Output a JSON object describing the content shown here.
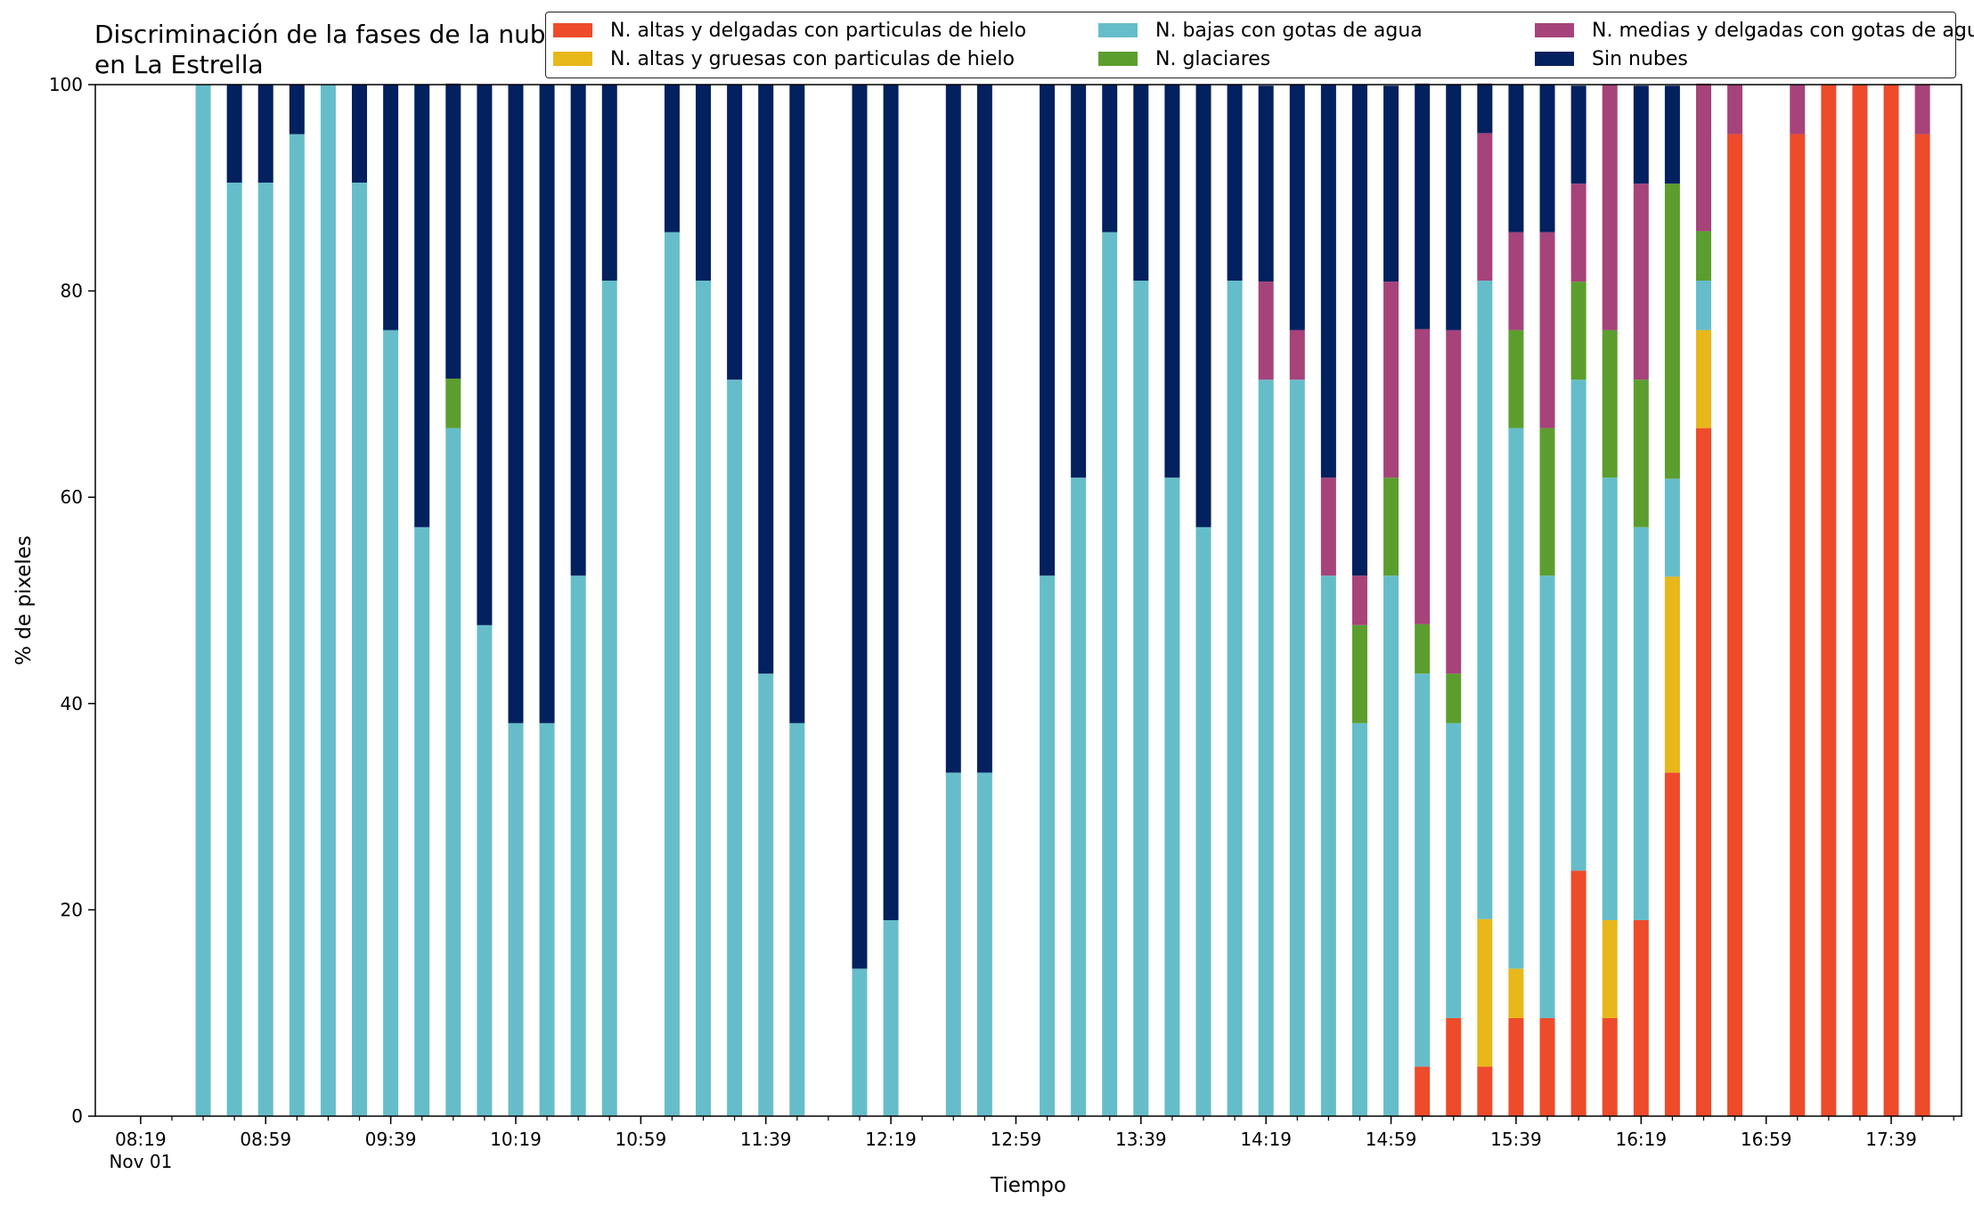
{
  "chart_data": {
    "type": "bar",
    "stacked": true,
    "title": "Discriminación de la fases de la nube en La Estrella",
    "xlabel": "Tiempo",
    "ylabel": "% de pixeles",
    "ylim": [
      0,
      100
    ],
    "yticks": [
      "0",
      "20",
      "40",
      "60",
      "80",
      "100"
    ],
    "xtick_labels": [
      "08:19",
      "08:59",
      "09:39",
      "10:19",
      "10:59",
      "11:39",
      "12:19",
      "12:59",
      "13:39",
      "14:19",
      "14:59",
      "15:39",
      "16:19",
      "16:59",
      "17:39"
    ],
    "xtick_date_label": "Nov 01",
    "x": [
      "08:39",
      "08:49",
      "08:59",
      "09:09",
      "09:19",
      "09:29",
      "09:39",
      "09:49",
      "09:59",
      "10:09",
      "10:19",
      "10:29",
      "10:39",
      "10:49",
      "11:09",
      "11:19",
      "11:29",
      "11:39",
      "11:49",
      "12:09",
      "12:19",
      "12:39",
      "12:49",
      "13:09",
      "13:19",
      "13:29",
      "13:39",
      "13:49",
      "13:59",
      "14:09",
      "14:19",
      "14:29",
      "14:39",
      "14:49",
      "14:59",
      "15:09",
      "15:19",
      "15:29",
      "15:39",
      "15:49",
      "15:59",
      "16:09",
      "16:19",
      "16:29",
      "16:39",
      "16:49",
      "17:09",
      "17:19",
      "17:29",
      "17:39",
      "17:49"
    ],
    "series": [
      {
        "name": "N. altas y delgadas con particulas de hielo",
        "color": "#ee4b2b",
        "values": [
          0,
          0,
          0,
          0,
          0,
          0,
          0,
          0,
          0,
          0,
          0,
          0,
          0,
          0,
          0,
          0,
          0,
          0,
          0,
          0,
          0,
          0,
          0,
          0,
          0,
          0,
          0,
          0,
          0,
          0,
          0,
          0,
          0,
          0,
          0,
          4.8,
          9.5,
          4.8,
          9.5,
          9.5,
          23.8,
          9.5,
          19,
          33.3,
          66.7,
          95.2,
          95.2,
          100,
          100,
          100,
          95.2
        ]
      },
      {
        "name": "N. altas y gruesas con particulas de hielo",
        "color": "#e8b71a",
        "values": [
          0,
          0,
          0,
          0,
          0,
          0,
          0,
          0,
          0,
          0,
          0,
          0,
          0,
          0,
          0,
          0,
          0,
          0,
          0,
          0,
          0,
          0,
          0,
          0,
          0,
          0,
          0,
          0,
          0,
          0,
          0,
          0,
          0,
          0,
          0,
          0,
          0,
          14.3,
          4.8,
          0,
          0,
          9.5,
          0,
          19,
          9.5,
          0,
          0,
          0,
          0,
          0,
          0
        ]
      },
      {
        "name": "N. bajas con gotas de agua",
        "color": "#66bdca",
        "values": [
          100,
          90.5,
          90.5,
          95.2,
          100,
          90.5,
          76.2,
          57.1,
          66.7,
          47.6,
          38.1,
          38.1,
          52.4,
          81,
          85.7,
          81,
          71.4,
          42.9,
          38.1,
          14.3,
          19,
          33.3,
          33.3,
          52.4,
          61.9,
          85.7,
          81,
          61.9,
          57.1,
          81,
          71.4,
          71.4,
          52.4,
          38.1,
          52.4,
          38.1,
          28.6,
          61.9,
          52.4,
          42.9,
          47.6,
          42.9,
          38.1,
          9.5,
          4.8,
          0,
          0,
          0,
          0,
          0,
          0
        ]
      },
      {
        "name": "N. glaciares",
        "color": "#5b9e2e",
        "values": [
          0,
          0,
          0,
          0,
          0,
          0,
          0,
          0,
          4.8,
          0,
          0,
          0,
          0,
          0,
          0,
          0,
          0,
          0,
          0,
          0,
          0,
          0,
          0,
          0,
          0,
          0,
          0,
          0,
          0,
          0,
          0,
          0,
          0,
          9.5,
          9.5,
          4.8,
          4.8,
          0,
          9.5,
          14.3,
          9.5,
          14.3,
          14.3,
          28.6,
          4.8,
          0,
          0,
          0,
          0,
          0,
          0
        ]
      },
      {
        "name": "N. medias y delgadas con gotas de agua",
        "color": "#a6437a",
        "values": [
          0,
          0,
          0,
          0,
          0,
          0,
          0,
          0,
          0,
          0,
          0,
          0,
          0,
          0,
          0,
          0,
          0,
          0,
          0,
          0,
          0,
          0,
          0,
          0,
          0,
          0,
          0,
          0,
          0,
          0,
          9.5,
          4.8,
          9.5,
          4.8,
          19,
          28.6,
          33.3,
          14.3,
          9.5,
          19,
          9.5,
          23.8,
          19,
          0,
          14.3,
          4.8,
          4.8,
          0,
          0,
          0,
          4.8
        ]
      },
      {
        "name": "Sin nubes",
        "color": "#03205f",
        "values": [
          0,
          9.5,
          9.5,
          4.8,
          0,
          9.5,
          23.8,
          42.9,
          28.6,
          52.4,
          61.9,
          61.9,
          47.6,
          19,
          14.3,
          19,
          28.6,
          57.1,
          61.9,
          85.7,
          81,
          66.7,
          66.7,
          47.6,
          38.1,
          14.3,
          19,
          38.1,
          42.9,
          19,
          19,
          23.8,
          38.1,
          47.6,
          19,
          23.8,
          23.8,
          4.8,
          14.3,
          14.3,
          9.5,
          0,
          9.5,
          9.5,
          0,
          0,
          0,
          0,
          0,
          0,
          0
        ]
      }
    ],
    "legend_position": "top-right",
    "grid": false
  }
}
